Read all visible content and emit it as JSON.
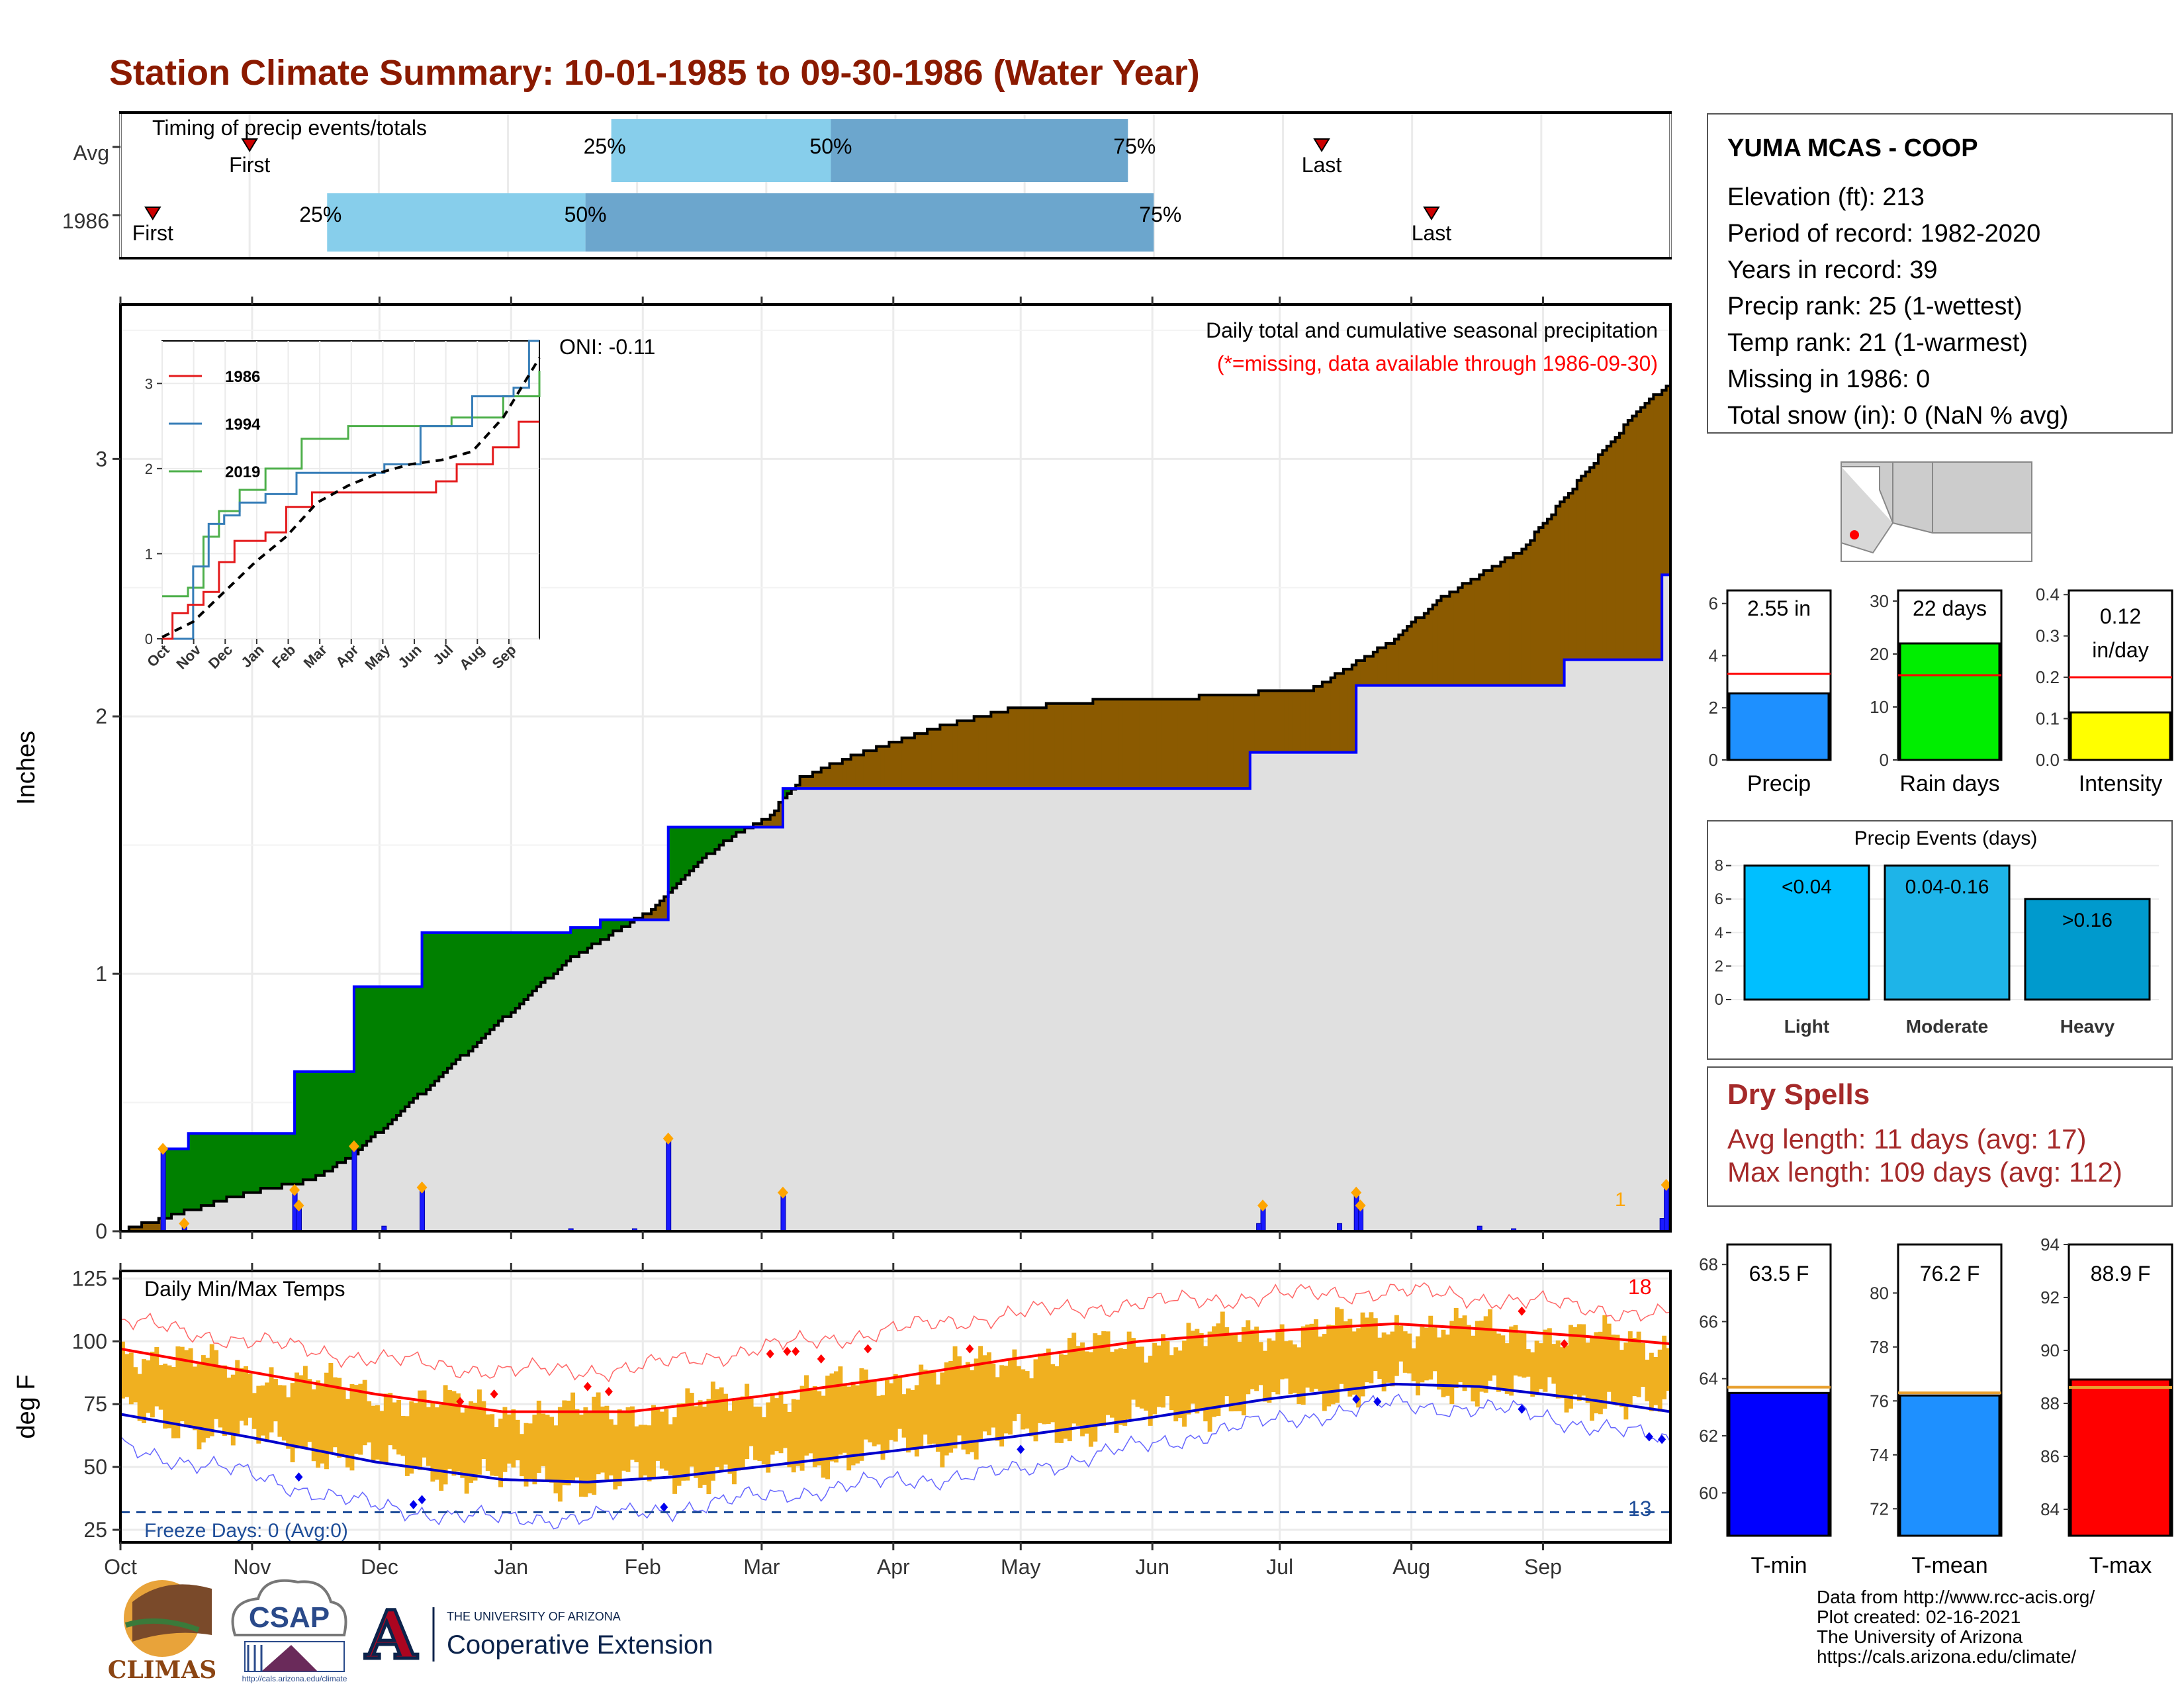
{
  "title": "Station Climate Summary: 10-01-1985 to 09-30-1986 (Water Year)",
  "colors": {
    "title": "#8b1a00",
    "light_blue": "#87ceeb",
    "mid_blue": "#6ca6cd",
    "deficit_brown": "#8b5a00",
    "surplus_green": "#008000",
    "cum_gray": "#e0e0e0",
    "avg_line_blue": "#0000ff",
    "temp_band": "#f0b020",
    "record_red": "#ff0000",
    "dry_text": "#a52a2a"
  },
  "timing_panel": {
    "title": "Timing of precip events/totals",
    "rows": [
      {
        "label": "Avg",
        "first_label": "First",
        "last_label": "Last",
        "first_x": 1.0,
        "last_x": 9.3,
        "p25": 3.8,
        "p50": 5.5,
        "p75": 7.8,
        "p25_label": "25%",
        "p50_label": "50%",
        "p75_label": "75%"
      },
      {
        "label": "1986",
        "first_label": "First",
        "last_label": "Last",
        "first_x": 0.25,
        "last_x": 10.15,
        "p25": 1.6,
        "p50": 3.6,
        "p75": 8.0,
        "p25_label": "25%",
        "p50_label": "50%",
        "p75_label": "75%"
      }
    ]
  },
  "info_box": {
    "station": "YUMA MCAS - COOP",
    "lines": [
      "Elevation (ft): 213",
      "Period of record: 1982-2020",
      "Years in record: 39",
      "Precip rank: 25 (1-wettest)",
      "Temp rank: 21 (1-warmest)",
      "Missing in 1986: 0",
      "Total snow (in): 0 (NaN % avg)"
    ]
  },
  "precip_panel": {
    "ylabel": "Inches",
    "oni": "ONI: -0.11",
    "title": "Daily total and cumulative seasonal precipitation",
    "note": "(*=missing, data available through 1986-09-30)",
    "yticks": [
      "0",
      "1",
      "2",
      "3"
    ],
    "max_label": "1",
    "ylim": [
      0,
      3.6
    ]
  },
  "months": [
    "Oct",
    "Nov",
    "Dec",
    "Jan",
    "Feb",
    "Mar",
    "Apr",
    "May",
    "Jun",
    "Jul",
    "Aug",
    "Sep"
  ],
  "month_starts": [
    0,
    31,
    61,
    92,
    123,
    151,
    182,
    212,
    243,
    273,
    304,
    335
  ],
  "inset": {
    "months": [
      "Oct",
      "Nov",
      "Dec",
      "Jan",
      "Feb",
      "Mar",
      "Apr",
      "May",
      "Jun",
      "Jul",
      "Aug",
      "Sep"
    ],
    "yticks": [
      "0",
      "1",
      "2",
      "3"
    ],
    "legend": [
      {
        "name": "1986",
        "color": "#e41a1c"
      },
      {
        "name": "1994",
        "color": "#377eb8"
      },
      {
        "name": "2019",
        "color": "#4daf4a"
      }
    ],
    "ylim": [
      0,
      3.5
    ],
    "series": {
      "1986": [
        [
          0,
          0
        ],
        [
          10,
          0.3
        ],
        [
          25,
          0.4
        ],
        [
          40,
          0.55
        ],
        [
          55,
          0.9
        ],
        [
          70,
          1.15
        ],
        [
          85,
          1.15
        ],
        [
          100,
          1.25
        ],
        [
          120,
          1.55
        ],
        [
          145,
          1.72
        ],
        [
          175,
          1.72
        ],
        [
          215,
          1.72
        ],
        [
          240,
          1.72
        ],
        [
          265,
          1.85
        ],
        [
          285,
          2.05
        ],
        [
          320,
          2.25
        ],
        [
          345,
          2.55
        ],
        [
          365,
          2.55
        ]
      ],
      "1994": [
        [
          0,
          0
        ],
        [
          15,
          0.0
        ],
        [
          30,
          0.85
        ],
        [
          45,
          1.35
        ],
        [
          60,
          1.45
        ],
        [
          75,
          1.6
        ],
        [
          100,
          1.7
        ],
        [
          130,
          1.95
        ],
        [
          160,
          1.95
        ],
        [
          200,
          1.95
        ],
        [
          215,
          2.05
        ],
        [
          250,
          2.5
        ],
        [
          300,
          2.85
        ],
        [
          340,
          2.95
        ],
        [
          355,
          3.5
        ],
        [
          365,
          3.5
        ]
      ],
      "2019": [
        [
          0,
          0.5
        ],
        [
          25,
          0.6
        ],
        [
          40,
          1.2
        ],
        [
          55,
          1.5
        ],
        [
          75,
          1.75
        ],
        [
          100,
          2.0
        ],
        [
          135,
          2.35
        ],
        [
          180,
          2.5
        ],
        [
          230,
          2.5
        ],
        [
          280,
          2.6
        ],
        [
          330,
          2.85
        ],
        [
          350,
          2.85
        ],
        [
          365,
          3.15
        ]
      ],
      "avg": [
        [
          0,
          0.02
        ],
        [
          30,
          0.2
        ],
        [
          60,
          0.55
        ],
        [
          90,
          0.9
        ],
        [
          120,
          1.2
        ],
        [
          150,
          1.6
        ],
        [
          180,
          1.8
        ],
        [
          210,
          1.95
        ],
        [
          240,
          2.05
        ],
        [
          270,
          2.1
        ],
        [
          300,
          2.2
        ],
        [
          330,
          2.6
        ],
        [
          350,
          3.0
        ],
        [
          365,
          3.3
        ]
      ]
    }
  },
  "precip_cumulative": {
    "station_1986": [
      [
        0,
        0
      ],
      [
        9,
        0.0
      ],
      [
        10,
        0.32
      ],
      [
        15,
        0.32
      ],
      [
        16,
        0.38
      ],
      [
        40,
        0.38
      ],
      [
        41,
        0.62
      ],
      [
        54,
        0.62
      ],
      [
        55,
        0.95
      ],
      [
        70,
        0.95
      ],
      [
        71,
        1.16
      ],
      [
        105,
        1.16
      ],
      [
        106,
        1.18
      ],
      [
        112,
        1.18
      ],
      [
        113,
        1.21
      ],
      [
        128,
        1.21
      ],
      [
        129,
        1.57
      ],
      [
        155,
        1.57
      ],
      [
        156,
        1.72
      ],
      [
        265,
        1.72
      ],
      [
        266,
        1.86
      ],
      [
        290,
        1.86
      ],
      [
        291,
        2.12
      ],
      [
        339,
        2.12
      ],
      [
        340,
        2.22
      ],
      [
        362,
        2.22
      ],
      [
        363,
        2.55
      ],
      [
        365,
        2.55
      ]
    ],
    "average": [
      [
        0,
        0.0
      ],
      [
        10,
        0.05
      ],
      [
        20,
        0.1
      ],
      [
        30,
        0.15
      ],
      [
        45,
        0.2
      ],
      [
        55,
        0.3
      ],
      [
        65,
        0.45
      ],
      [
        75,
        0.6
      ],
      [
        85,
        0.75
      ],
      [
        95,
        0.9
      ],
      [
        105,
        1.05
      ],
      [
        115,
        1.15
      ],
      [
        125,
        1.25
      ],
      [
        135,
        1.42
      ],
      [
        145,
        1.55
      ],
      [
        152,
        1.6
      ],
      [
        160,
        1.76
      ],
      [
        170,
        1.83
      ],
      [
        182,
        1.9
      ],
      [
        195,
        1.97
      ],
      [
        210,
        2.03
      ],
      [
        230,
        2.06
      ],
      [
        250,
        2.07
      ],
      [
        265,
        2.09
      ],
      [
        280,
        2.1
      ],
      [
        290,
        2.2
      ],
      [
        300,
        2.3
      ],
      [
        310,
        2.45
      ],
      [
        320,
        2.55
      ],
      [
        330,
        2.65
      ],
      [
        340,
        2.85
      ],
      [
        350,
        3.05
      ],
      [
        358,
        3.2
      ],
      [
        365,
        3.3
      ]
    ],
    "daily_bars": [
      [
        10,
        0.32
      ],
      [
        15,
        0.03
      ],
      [
        41,
        0.16
      ],
      [
        42,
        0.1
      ],
      [
        55,
        0.33
      ],
      [
        62,
        0.02
      ],
      [
        71,
        0.17
      ],
      [
        106,
        0.01
      ],
      [
        121,
        0.01
      ],
      [
        129,
        0.36
      ],
      [
        156,
        0.15
      ],
      [
        269,
        0.1
      ],
      [
        268,
        0.03
      ],
      [
        287,
        0.03
      ],
      [
        291,
        0.15
      ],
      [
        292,
        0.1
      ],
      [
        320,
        0.02
      ],
      [
        328,
        0.01
      ],
      [
        363,
        0.05
      ],
      [
        364,
        0.18
      ]
    ]
  },
  "temp_panel": {
    "ylabel": "deg F",
    "title": "Daily Min/Max Temps",
    "freeze_label": "Freeze Days: 0 (Avg:0)",
    "yticks": [
      "25",
      "50",
      "75",
      "100",
      "125"
    ],
    "ylim": [
      20,
      128
    ],
    "high_count": "18",
    "low_count": "13",
    "avg_max": [
      [
        0,
        97
      ],
      [
        30,
        88
      ],
      [
        60,
        79
      ],
      [
        90,
        72
      ],
      [
        120,
        72
      ],
      [
        150,
        78
      ],
      [
        180,
        85
      ],
      [
        210,
        93
      ],
      [
        240,
        100
      ],
      [
        270,
        104
      ],
      [
        300,
        107
      ],
      [
        320,
        105
      ],
      [
        345,
        102
      ],
      [
        365,
        99
      ]
    ],
    "avg_min": [
      [
        0,
        71
      ],
      [
        30,
        62
      ],
      [
        60,
        52
      ],
      [
        90,
        45
      ],
      [
        110,
        44
      ],
      [
        130,
        46
      ],
      [
        150,
        50
      ],
      [
        180,
        56
      ],
      [
        210,
        62
      ],
      [
        240,
        69
      ],
      [
        270,
        77
      ],
      [
        300,
        83
      ],
      [
        320,
        82
      ],
      [
        345,
        77
      ],
      [
        365,
        72
      ]
    ],
    "rec_max": [
      [
        0,
        108
      ],
      [
        30,
        100
      ],
      [
        60,
        93
      ],
      [
        90,
        88
      ],
      [
        120,
        89
      ],
      [
        150,
        97
      ],
      [
        180,
        104
      ],
      [
        210,
        111
      ],
      [
        240,
        115
      ],
      [
        270,
        118
      ],
      [
        300,
        120
      ],
      [
        330,
        116
      ],
      [
        365,
        110
      ]
    ],
    "rec_min": [
      [
        0,
        58
      ],
      [
        30,
        47
      ],
      [
        60,
        34
      ],
      [
        90,
        29
      ],
      [
        120,
        31
      ],
      [
        150,
        38
      ],
      [
        180,
        44
      ],
      [
        210,
        48
      ],
      [
        240,
        58
      ],
      [
        270,
        68
      ],
      [
        300,
        75
      ],
      [
        330,
        72
      ],
      [
        365,
        60
      ]
    ]
  },
  "precip_small": [
    {
      "label": "Precip",
      "value_label": "2.55 in",
      "value": 2.55,
      "avg": 3.3,
      "ymax": 6.5,
      "yticks": [
        "0",
        "2",
        "4",
        "6"
      ],
      "color": "#1e90ff"
    },
    {
      "label": "Rain days",
      "value_label": "22 days",
      "value": 22,
      "avg": 16,
      "ymax": 32,
      "yticks": [
        "0",
        "10",
        "20",
        "30"
      ],
      "color": "#00ee00"
    },
    {
      "label": "Intensity",
      "value_label_1": "0.12",
      "value_label_2": "in/day",
      "value": 0.115,
      "avg": 0.2,
      "ymax": 0.41,
      "yticks": [
        "0.0",
        "0.1",
        "0.2",
        "0.3",
        "0.4"
      ],
      "color": "#ffff00"
    }
  ],
  "events": {
    "title": "Precip Events (days)",
    "yticks": [
      "0",
      "2",
      "4",
      "6",
      "8"
    ],
    "ymax": 8.3,
    "bars": [
      {
        "label": "Light",
        "value": 8,
        "value_label": "<0.04",
        "color": "#00bfff"
      },
      {
        "label": "Moderate",
        "value": 8,
        "value_label": "0.04-0.16",
        "color": "#1eb4e8"
      },
      {
        "label": "Heavy",
        "value": 6,
        "value_label": ">0.16",
        "color": "#009acd"
      }
    ]
  },
  "dry_spells": {
    "title": "Dry Spells",
    "line1": "Avg length: 11 days (avg: 17)",
    "line2": "Max length: 109 days (avg: 112)"
  },
  "temp_small": [
    {
      "label": "T-min",
      "value_label": "63.5 F",
      "value": 63.5,
      "avg": 63.7,
      "ymin": 58.5,
      "ymax": 68.7,
      "yticks": [
        "60",
        "62",
        "64",
        "66",
        "68"
      ],
      "tick_vals": [
        60,
        62,
        64,
        66,
        68
      ],
      "color": "#0000ff"
    },
    {
      "label": "T-mean",
      "value_label": "76.2 F",
      "value": 76.2,
      "avg": 76.3,
      "ymin": 71.0,
      "ymax": 81.8,
      "yticks": [
        "72",
        "74",
        "76",
        "78",
        "80"
      ],
      "tick_vals": [
        72,
        74,
        76,
        78,
        80
      ],
      "color": "#1e90ff"
    },
    {
      "label": "T-max",
      "value_label": "88.9 F",
      "value": 88.9,
      "avg": 88.6,
      "ymin": 83.0,
      "ymax": 94.0,
      "yticks": [
        "84",
        "86",
        "88",
        "90",
        "92",
        "94"
      ],
      "tick_vals": [
        84,
        86,
        88,
        90,
        92,
        94
      ],
      "color": "#ff0000"
    }
  ],
  "footer": {
    "lines": [
      "Data from http://www.rcc-acis.org/",
      "Plot created: 02-16-2021",
      "The University of Arizona",
      "https://cals.arizona.edu/climate/"
    ]
  },
  "logos": {
    "climas": "CLIMAS",
    "csap": "CSAP",
    "csap_url": "http://cals.arizona.edu/climate",
    "ua_small": "THE UNIVERSITY OF ARIZONA",
    "ua_big": "Cooperative Extension",
    "ua_letter": "A"
  }
}
